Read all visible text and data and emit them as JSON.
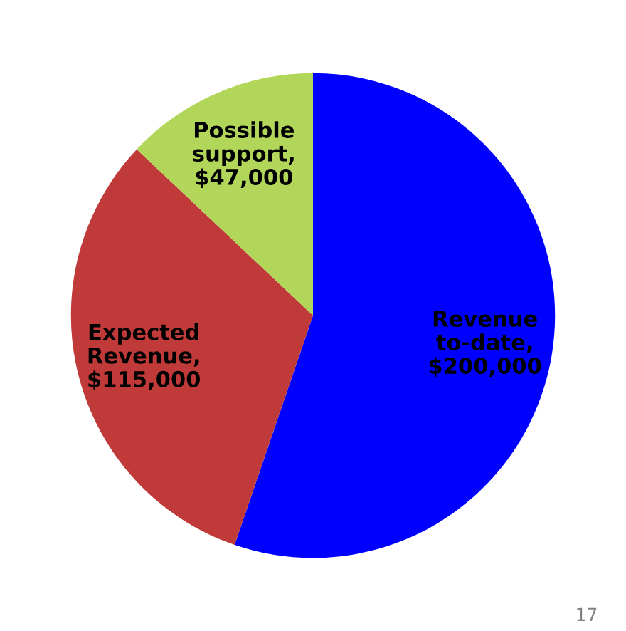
{
  "chart_data": {
    "type": "pie",
    "categories": [
      null,
      null,
      null
    ],
    "values": [
      200000,
      115000,
      47000
    ],
    "value_labels": [
      "Revenue\nto-date,\n$200,000",
      "Expected\nRevenue,\n$115,000",
      "Possible\nsupport,\n$47,000"
    ],
    "colors": [
      "#0000ff",
      "#c03a3a",
      "#b2d65a"
    ],
    "annotations": [
      "17"
    ]
  }
}
